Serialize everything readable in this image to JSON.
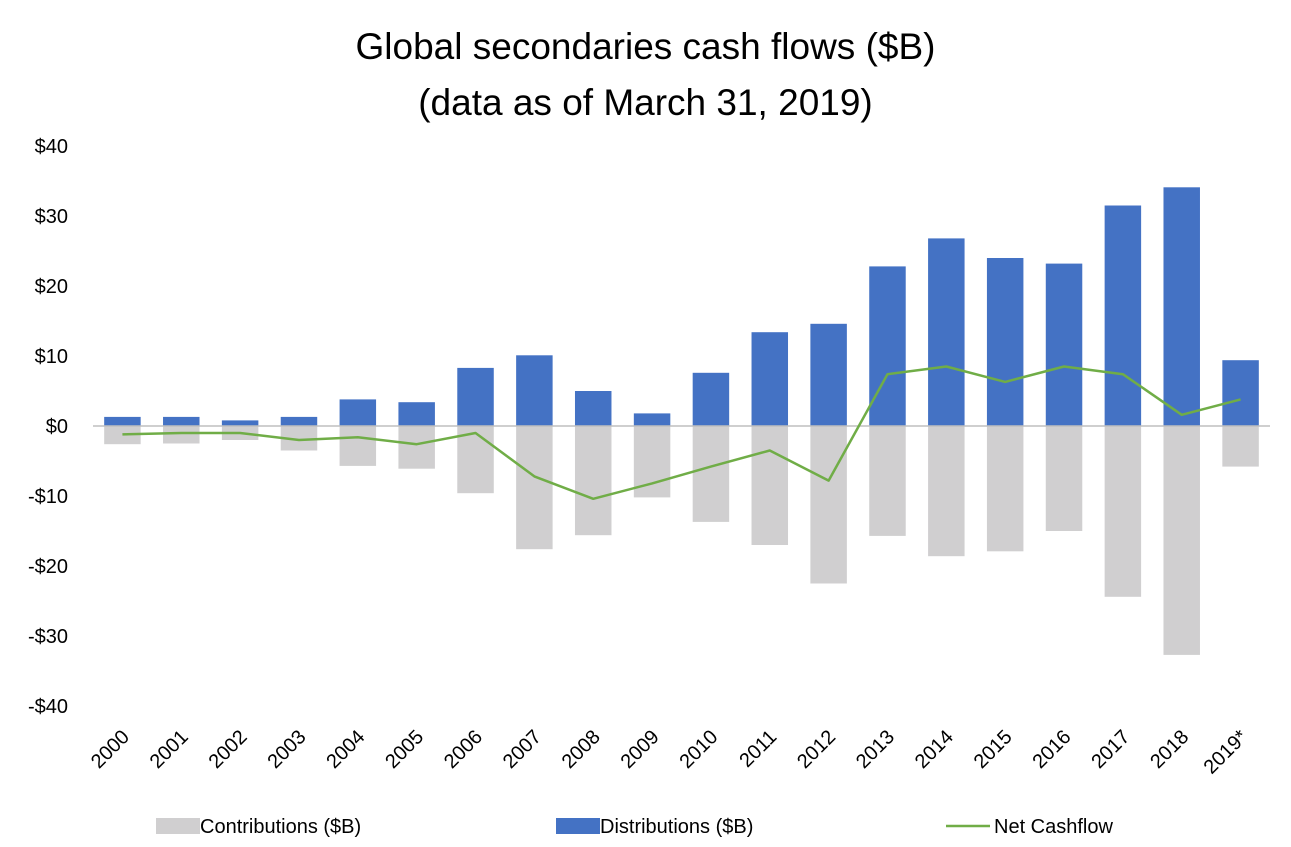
{
  "chart_data": {
    "type": "bar",
    "title": "Global secondaries cash flows ($B)",
    "subtitle": "(data as of March 31, 2019)",
    "categories": [
      "2000",
      "2001",
      "2002",
      "2003",
      "2004",
      "2005",
      "2006",
      "2007",
      "2008",
      "2009",
      "2010",
      "2011",
      "2012",
      "2013",
      "2014",
      "2015",
      "2016",
      "2017",
      "2018",
      "2019*"
    ],
    "series": [
      {
        "name": "Contributions ($B)",
        "kind": "bar",
        "color": "#d0cfd0",
        "values": [
          -2.6,
          -2.5,
          -2.0,
          -3.5,
          -5.7,
          -6.1,
          -9.6,
          -17.6,
          -15.6,
          -10.2,
          -13.7,
          -17.0,
          -22.5,
          -15.7,
          -18.6,
          -17.9,
          -15.0,
          -24.4,
          -32.7,
          -5.8
        ]
      },
      {
        "name": "Distributions ($B)",
        "kind": "bar",
        "color": "#4472c4",
        "values": [
          1.3,
          1.3,
          0.8,
          1.3,
          3.8,
          3.4,
          8.3,
          10.1,
          5.0,
          1.8,
          7.6,
          13.4,
          14.6,
          22.8,
          26.8,
          24.0,
          23.2,
          31.5,
          34.1,
          9.4
        ]
      },
      {
        "name": "Net Cashflow",
        "kind": "line",
        "color": "#70ad47",
        "values": [
          -1.2,
          -1.0,
          -1.0,
          -2.0,
          -1.6,
          -2.6,
          -1.0,
          -7.2,
          -10.4,
          -8.2,
          -5.8,
          -3.5,
          -7.8,
          7.4,
          8.5,
          6.3,
          8.5,
          7.4,
          1.6,
          3.8
        ]
      }
    ],
    "ylim": [
      -40,
      40
    ],
    "yticks": [
      40,
      30,
      20,
      10,
      0,
      -10,
      -20,
      -30,
      -40
    ],
    "ytick_labels": [
      "$40",
      "$30",
      "$20",
      "$10",
      "$0",
      "-$10",
      "-$20",
      "-$30",
      "-$40"
    ],
    "xlabel": "",
    "ylabel": "",
    "grid": false,
    "legend_position": "bottom"
  }
}
